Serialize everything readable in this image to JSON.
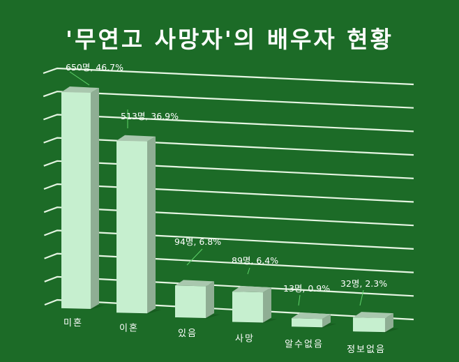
{
  "title": "'무연고 사망자'의 배우자 현황",
  "colors": {
    "background": "#1c6b27",
    "bar_front": "#c6efcf",
    "bar_side": "#8fae94",
    "bar_top": "#a9c7ae",
    "gridline": "#e6f5e3",
    "leader_line": "#5fd46a",
    "text": "#ffffff"
  },
  "chart_data": {
    "type": "bar",
    "title": "'무연고 사망자'의 배우자 현황",
    "categories": [
      "미혼",
      "이혼",
      "있음",
      "사망",
      "알수없음",
      "정보없음"
    ],
    "values": [
      650,
      513,
      94,
      89,
      13,
      32
    ],
    "percentages": [
      46.7,
      36.9,
      6.8,
      6.4,
      0.9,
      2.3
    ],
    "data_labels": [
      "650명, 46.7%",
      "513명, 36.9%",
      "94명, 6.8%",
      "89명, 6.4%",
      "13명, 0.9%",
      "32명, 2.3%"
    ],
    "xlabel": "",
    "ylabel": "",
    "ylim": [
      0,
      700
    ],
    "gridlines": 11,
    "grid": true,
    "style": "3d-column",
    "legend": "none"
  }
}
